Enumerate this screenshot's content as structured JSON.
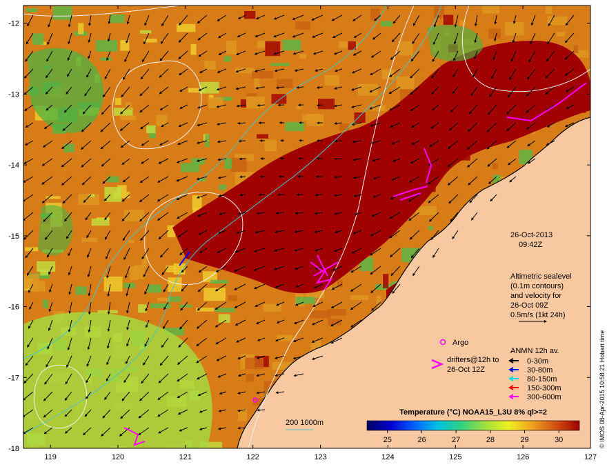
{
  "map": {
    "lon_range": [
      118.6,
      127.0
    ],
    "lat_range": [
      -18.0,
      -11.75
    ],
    "x_ticks": [
      119,
      120,
      121,
      122,
      123,
      124,
      125,
      126,
      127
    ],
    "y_ticks": [
      -12,
      -13,
      -14,
      -15,
      -16,
      -17,
      -18
    ],
    "colors": {
      "land": "#f8c8a0",
      "sst_hot": "#a00000",
      "sst_warm": "#c86010",
      "sst_mid": "#e09820",
      "sst_cool": "#58b848",
      "coastline": "#000000",
      "contour": "#e8e8e8",
      "isobath": "#40c8c8",
      "argo": "#ff00ff",
      "drifter": "#ff00ff"
    }
  },
  "datetime": {
    "date": "26-Oct-2013",
    "time": "09:42Z"
  },
  "altimetry_note": {
    "lines": [
      "Altimetric sealevel",
      "(0.1m contours)",
      "and velocity for",
      "26-Oct 09Z",
      "0.5m/s (1kt 24h)"
    ]
  },
  "legend": {
    "argo_label": "Argo",
    "drifter_lines": [
      "drifters@12h to",
      "26-Oct 12Z"
    ],
    "anmn_title": "ANMN 12h av.",
    "anmn_items": [
      {
        "label": "0-30m",
        "color": "#000000"
      },
      {
        "label": "30-80m",
        "color": "#0000ff"
      },
      {
        "label": "80-150m",
        "color": "#00e0e0"
      },
      {
        "label": "150-300m",
        "color": "#ff0000"
      },
      {
        "label": "300-600m",
        "color": "#ff00ff"
      }
    ],
    "isobath_label": "200  1000m"
  },
  "colorbar": {
    "title": "Temperature (°C) NOAA15_L3U 8% ql>=2",
    "range": [
      24.4,
      30.6
    ],
    "ticks": [
      25,
      26,
      27,
      28,
      29,
      30
    ],
    "stops": [
      "#000060",
      "#0000d0",
      "#0060ff",
      "#00c0e0",
      "#30d080",
      "#a0e040",
      "#f0f020",
      "#f0a020",
      "#d05010",
      "#a00000"
    ]
  },
  "credit": "© IMOS 08-Apr-2015 10:58:21 Hobart time"
}
